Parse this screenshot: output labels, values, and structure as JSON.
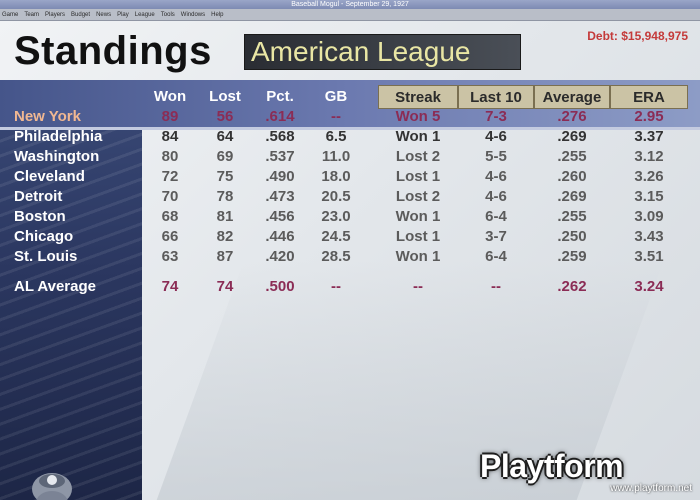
{
  "window": {
    "title": "Baseball Mogul - September 29, 1927"
  },
  "menu": [
    "Game",
    "Team",
    "Players",
    "Budget",
    "News",
    "Play",
    "League",
    "Tools",
    "Windows",
    "Help"
  ],
  "page": {
    "title": "Standings",
    "league": "American League",
    "debt": "Debt: $15,948,975"
  },
  "columns": [
    "Won",
    "Lost",
    "Pct.",
    "GB",
    "Streak",
    "Last 10",
    "Average",
    "ERA"
  ],
  "teams": [
    {
      "name": "New York",
      "won": "89",
      "lost": "56",
      "pct": ".614",
      "gb": "--",
      "streak": "Won 5",
      "last10": "7-3",
      "avg": ".276",
      "era": "2.95"
    },
    {
      "name": "Philadelphia",
      "won": "84",
      "lost": "64",
      "pct": ".568",
      "gb": "6.5",
      "streak": "Won 1",
      "last10": "4-6",
      "avg": ".269",
      "era": "3.37"
    },
    {
      "name": "Washington",
      "won": "80",
      "lost": "69",
      "pct": ".537",
      "gb": "11.0",
      "streak": "Lost 2",
      "last10": "5-5",
      "avg": ".255",
      "era": "3.12"
    },
    {
      "name": "Cleveland",
      "won": "72",
      "lost": "75",
      "pct": ".490",
      "gb": "18.0",
      "streak": "Lost 1",
      "last10": "4-6",
      "avg": ".260",
      "era": "3.26"
    },
    {
      "name": "Detroit",
      "won": "70",
      "lost": "78",
      "pct": ".473",
      "gb": "20.5",
      "streak": "Lost 2",
      "last10": "4-6",
      "avg": ".269",
      "era": "3.15"
    },
    {
      "name": "Boston",
      "won": "68",
      "lost": "81",
      "pct": ".456",
      "gb": "23.0",
      "streak": "Won 1",
      "last10": "6-4",
      "avg": ".255",
      "era": "3.09"
    },
    {
      "name": "Chicago",
      "won": "66",
      "lost": "82",
      "pct": ".446",
      "gb": "24.5",
      "streak": "Lost 1",
      "last10": "3-7",
      "avg": ".250",
      "era": "3.43"
    },
    {
      "name": "St. Louis",
      "won": "63",
      "lost": "87",
      "pct": ".420",
      "gb": "28.5",
      "streak": "Won 1",
      "last10": "6-4",
      "avg": ".259",
      "era": "3.51"
    }
  ],
  "average": {
    "name": "AL Average",
    "won": "74",
    "lost": "74",
    "pct": ".500",
    "gb": "--",
    "streak": "--",
    "last10": "--",
    "avg": ".262",
    "era": "3.24"
  },
  "watermark": {
    "logo": "Playtform",
    "url": "www.playtform.net"
  }
}
